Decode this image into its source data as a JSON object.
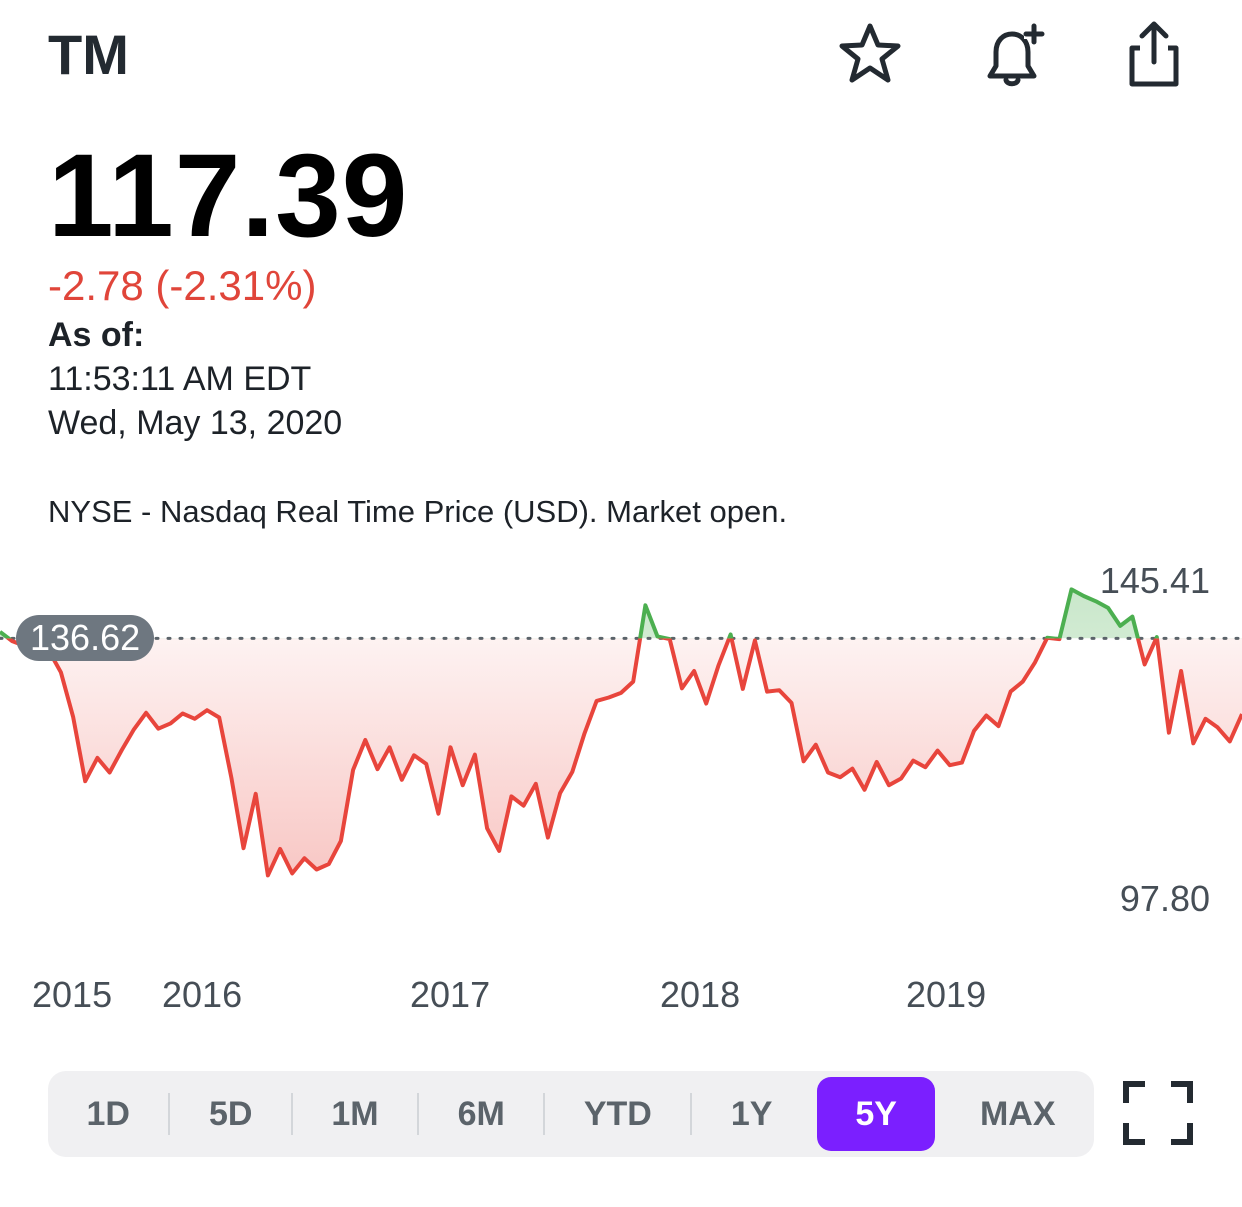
{
  "header": {
    "symbol": "TM",
    "icons": {
      "watchlist": "star-icon",
      "alert": "bell-plus-icon",
      "share": "share-icon"
    }
  },
  "quote": {
    "price": "117.39",
    "change": "-2.78 (-2.31%)",
    "as_of_label": "As of:",
    "as_of_time": "11:53:11 AM EDT",
    "as_of_date": "Wed, May 13, 2020",
    "market_note": "NYSE - Nasdaq Real Time Price (USD). Market open."
  },
  "chart_data": {
    "type": "line",
    "x_tick_labels": [
      "2015",
      "2016",
      "2017",
      "2018",
      "2019"
    ],
    "y_high_label": "145.41",
    "y_low_label": "97.80",
    "previous_close_label": "136.62",
    "ylim": [
      97.8,
      145.41
    ],
    "previous_close": 136.62,
    "grid": false,
    "colors": {
      "above": "#4caf50",
      "below": "#e8453c"
    },
    "values": [
      137.6,
      136.2,
      135.5,
      136.9,
      134.8,
      131.5,
      124.8,
      115.1,
      118.6,
      116.4,
      119.8,
      122.9,
      125.4,
      123.0,
      123.8,
      125.3,
      124.5,
      125.8,
      124.7,
      115.6,
      105.0,
      113.2,
      100.9,
      104.9,
      101.2,
      103.5,
      101.8,
      102.6,
      106.1,
      116.8,
      121.3,
      116.9,
      120.2,
      115.3,
      119.0,
      117.7,
      110.2,
      120.2,
      114.5,
      119.1,
      108.0,
      104.6,
      112.8,
      111.4,
      114.7,
      106.6,
      113.3,
      116.5,
      122.3,
      127.2,
      127.7,
      128.4,
      130.1,
      141.6,
      136.9,
      136.5,
      129.1,
      131.7,
      126.8,
      132.5,
      137.2,
      129.0,
      136.3,
      128.6,
      128.8,
      126.9,
      118.1,
      120.6,
      116.4,
      115.7,
      117.0,
      113.8,
      118.0,
      114.5,
      115.5,
      118.2,
      117.2,
      119.7,
      117.5,
      117.9,
      122.7,
      125.0,
      123.4,
      128.6,
      130.1,
      133.0,
      136.7,
      136.5,
      144.0,
      143.0,
      142.2,
      141.2,
      138.5,
      139.9,
      132.7,
      136.8,
      122.4,
      131.7,
      120.8,
      124.5,
      123.2,
      121.1,
      125.2
    ]
  },
  "range_selector": {
    "options": [
      "1D",
      "5D",
      "1M",
      "6M",
      "YTD",
      "1Y",
      "5Y",
      "MAX"
    ],
    "selected": "5Y",
    "accent_color": "#7b1fff"
  },
  "fullscreen_icon": "fullscreen-icon"
}
